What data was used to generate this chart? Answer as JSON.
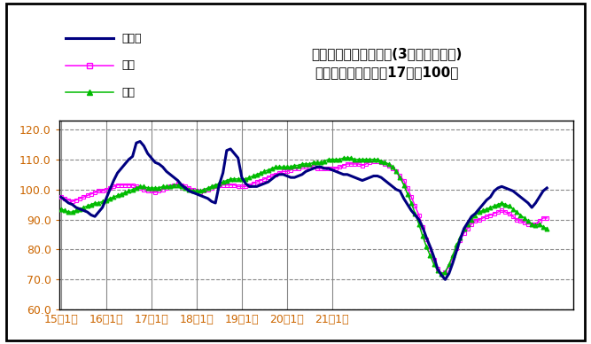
{
  "title_line1": "鉱工業生産指数の推移(3ヶ月移動平均)",
  "title_line2": "（季節調整済、平成17年＝100）",
  "legend_tottori": "鳥取県",
  "legend_chugoku": "中国",
  "legend_zenkoku": "全国",
  "ylim": [
    60.0,
    123.0
  ],
  "yticks": [
    60.0,
    70.0,
    80.0,
    90.0,
    100.0,
    110.0,
    120.0
  ],
  "xlabel_ticks": [
    "15年1月",
    "16年1月",
    "17年1月",
    "18年1月",
    "19年1月",
    "20年1月",
    "21年1月"
  ],
  "xtick_months": [
    0,
    12,
    24,
    36,
    48,
    60,
    72
  ],
  "color_tottori": "#000080",
  "color_chugoku": "#FF00FF",
  "color_zenkoku": "#00BB00",
  "bg_color": "#FFFFFF",
  "outer_border_color": "#000000",
  "grid_h_color": "#555555",
  "grid_v_color": "#888888",
  "tick_label_color": "#CC6600",
  "tottori": [
    97.5,
    96.5,
    95.5,
    95.0,
    94.0,
    93.5,
    93.0,
    92.5,
    91.5,
    91.0,
    92.5,
    94.0,
    97.0,
    100.0,
    103.0,
    105.5,
    107.0,
    108.5,
    110.0,
    111.0,
    115.5,
    116.0,
    114.5,
    112.0,
    110.5,
    109.0,
    108.5,
    107.5,
    106.0,
    105.0,
    104.0,
    103.0,
    101.5,
    100.5,
    99.5,
    99.0,
    98.5,
    98.0,
    97.5,
    97.0,
    96.0,
    95.5,
    101.5,
    105.5,
    113.0,
    113.5,
    112.0,
    110.5,
    104.0,
    102.0,
    101.0,
    101.0,
    101.0,
    101.5,
    102.0,
    102.5,
    103.5,
    104.5,
    105.0,
    105.0,
    104.5,
    104.0,
    104.0,
    104.5,
    105.0,
    106.0,
    106.5,
    107.0,
    107.5,
    107.5,
    107.0,
    107.0,
    106.5,
    106.0,
    105.5,
    105.0,
    105.0,
    104.5,
    104.0,
    103.5,
    103.0,
    103.5,
    104.0,
    104.5,
    104.5,
    104.0,
    103.0,
    102.0,
    101.0,
    100.0,
    99.5,
    97.0,
    95.0,
    93.0,
    91.5,
    90.0,
    87.5,
    84.0,
    81.0,
    77.5,
    73.5,
    71.5,
    70.0,
    72.0,
    75.5,
    79.5,
    83.5,
    87.0,
    89.0,
    91.0,
    92.0,
    93.5,
    95.0,
    96.5,
    97.5,
    99.5,
    100.5,
    101.0,
    100.5,
    100.0,
    99.5,
    98.5,
    97.5,
    96.5,
    95.5,
    94.0,
    95.5,
    97.5,
    99.5,
    100.5
  ],
  "chugoku": [
    97.5,
    97.0,
    96.5,
    96.0,
    96.5,
    97.0,
    97.5,
    98.0,
    98.5,
    99.0,
    99.5,
    99.5,
    100.0,
    100.5,
    101.0,
    101.5,
    101.5,
    101.5,
    101.5,
    101.5,
    101.0,
    100.5,
    100.0,
    99.5,
    99.5,
    99.0,
    99.5,
    100.0,
    100.5,
    101.0,
    101.5,
    102.0,
    101.5,
    101.0,
    100.5,
    100.0,
    99.5,
    99.0,
    99.5,
    100.0,
    100.5,
    101.0,
    101.5,
    101.5,
    101.5,
    101.5,
    101.5,
    101.0,
    101.0,
    101.0,
    101.5,
    102.0,
    102.5,
    103.0,
    103.5,
    104.0,
    104.5,
    105.0,
    105.5,
    106.0,
    106.0,
    106.5,
    107.0,
    107.0,
    107.5,
    107.5,
    107.5,
    107.5,
    107.0,
    107.0,
    107.0,
    107.0,
    107.0,
    107.0,
    107.5,
    108.0,
    108.5,
    108.5,
    108.5,
    108.5,
    108.0,
    108.5,
    109.0,
    109.5,
    109.5,
    109.0,
    108.5,
    108.0,
    107.0,
    106.0,
    104.5,
    103.0,
    100.5,
    97.5,
    94.5,
    91.5,
    87.5,
    83.5,
    80.0,
    76.5,
    73.5,
    72.0,
    72.5,
    74.5,
    77.5,
    80.5,
    83.0,
    85.5,
    87.0,
    88.5,
    89.5,
    90.0,
    90.5,
    91.0,
    91.5,
    92.0,
    92.5,
    93.0,
    92.5,
    92.0,
    91.0,
    90.0,
    89.5,
    89.0,
    88.5,
    88.5,
    88.5,
    89.5,
    90.5,
    90.5
  ],
  "zenkoku": [
    93.5,
    93.0,
    92.5,
    92.5,
    93.0,
    93.5,
    94.0,
    94.5,
    95.0,
    95.5,
    95.5,
    96.0,
    96.5,
    97.0,
    97.5,
    98.0,
    98.5,
    99.0,
    99.5,
    100.0,
    100.5,
    101.0,
    101.0,
    100.5,
    100.5,
    100.5,
    100.5,
    101.0,
    101.0,
    101.0,
    101.5,
    101.5,
    101.0,
    100.5,
    100.0,
    99.5,
    99.5,
    99.5,
    100.0,
    100.5,
    101.0,
    101.5,
    102.0,
    102.5,
    103.0,
    103.5,
    103.5,
    103.5,
    103.5,
    103.5,
    104.0,
    104.5,
    105.0,
    105.5,
    106.0,
    106.5,
    107.0,
    107.5,
    107.5,
    107.5,
    107.5,
    107.5,
    108.0,
    108.0,
    108.5,
    108.5,
    108.5,
    109.0,
    109.0,
    109.0,
    109.5,
    110.0,
    110.0,
    110.0,
    110.0,
    110.5,
    110.5,
    110.5,
    110.0,
    110.0,
    110.0,
    110.0,
    110.0,
    110.0,
    110.0,
    109.5,
    109.0,
    108.5,
    107.5,
    106.0,
    104.0,
    101.5,
    98.5,
    95.5,
    92.0,
    88.5,
    84.5,
    81.0,
    78.0,
    75.0,
    73.0,
    72.0,
    72.5,
    75.0,
    78.0,
    81.5,
    84.0,
    87.0,
    88.5,
    90.0,
    91.5,
    92.5,
    93.0,
    93.5,
    94.0,
    94.5,
    95.0,
    95.5,
    95.0,
    94.5,
    93.5,
    92.5,
    91.5,
    90.5,
    89.5,
    88.5,
    88.0,
    88.5,
    87.5,
    87.0
  ]
}
